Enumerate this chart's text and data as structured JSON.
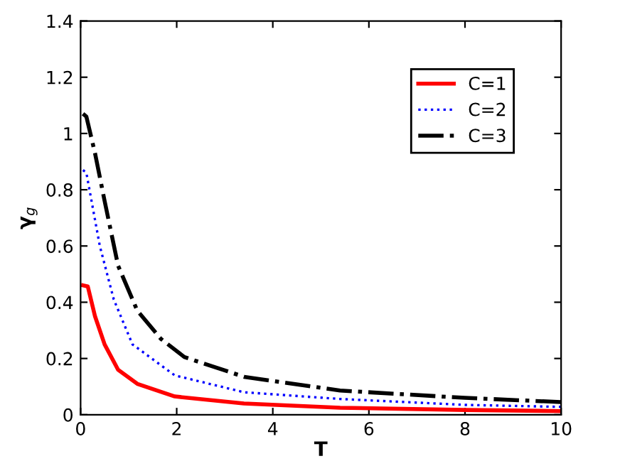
{
  "chart_data": {
    "type": "line",
    "xlabel": "T",
    "ylabel": "γ$_{g}$",
    "xlim": [
      0,
      10
    ],
    "ylim": [
      0,
      1.4
    ],
    "xticks": [
      0,
      2,
      4,
      6,
      8,
      10
    ],
    "yticks": [
      0,
      0.2,
      0.4,
      0.6,
      0.8,
      1,
      1.2,
      1.4
    ],
    "grid": false,
    "legend": "top right",
    "marker": "none",
    "series": [
      {
        "name": "C=1",
        "color": "#ff0000",
        "line_style": "solid",
        "x": [
          0.05,
          0.15,
          0.3,
          0.5,
          0.78,
          1.18,
          1.96,
          3.4,
          5.4,
          8,
          10
        ],
        "values": [
          0.46,
          0.456,
          0.35,
          0.25,
          0.16,
          0.11,
          0.065,
          0.04,
          0.025,
          0.017,
          0.013
        ]
      },
      {
        "name": "C=2",
        "color": "#0000ff",
        "line_style": "dotted",
        "x": [
          0.05,
          0.12,
          0.4,
          0.69,
          1.08,
          1.96,
          3.4,
          5.4,
          8,
          10
        ],
        "values": [
          0.87,
          0.86,
          0.6,
          0.41,
          0.25,
          0.14,
          0.08,
          0.056,
          0.035,
          0.028
        ]
      },
      {
        "name": "C=3",
        "color": "#000000",
        "line_style": "dashdot",
        "x": [
          0.05,
          0.12,
          0.3,
          0.5,
          0.78,
          1.18,
          1.67,
          2.16,
          3.4,
          5.4,
          8,
          10
        ],
        "values": [
          1.07,
          1.06,
          0.93,
          0.76,
          0.53,
          0.37,
          0.27,
          0.205,
          0.135,
          0.086,
          0.06,
          0.045
        ]
      }
    ]
  }
}
